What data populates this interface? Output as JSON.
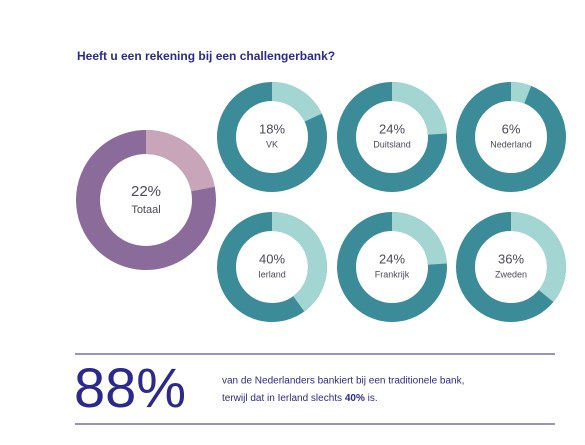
{
  "title": "Heeft u een rekening bij een challengerbank?",
  "chart_data": [
    {
      "type": "donut",
      "label": "Totaal",
      "values": [
        22
      ],
      "value_labels": [
        "22%"
      ],
      "color": "#c9a5ba",
      "track_color": "#8a6b9a",
      "size": "large"
    },
    {
      "type": "donut",
      "label": "VK",
      "values": [
        18
      ],
      "value_labels": [
        "18%"
      ],
      "color": "#a3d5d3",
      "track_color": "#3b8b98",
      "size": "small"
    },
    {
      "type": "donut",
      "label": "Duitsland",
      "values": [
        24
      ],
      "value_labels": [
        "24%"
      ],
      "color": "#a3d5d3",
      "track_color": "#3b8b98",
      "size": "small"
    },
    {
      "type": "donut",
      "label": "Nederland",
      "values": [
        6
      ],
      "value_labels": [
        "6%"
      ],
      "color": "#a3d5d3",
      "track_color": "#3b8b98",
      "size": "small"
    },
    {
      "type": "donut",
      "label": "Ierland",
      "values": [
        40
      ],
      "value_labels": [
        "40%"
      ],
      "color": "#a3d5d3",
      "track_color": "#3b8b98",
      "size": "small"
    },
    {
      "type": "donut",
      "label": "Frankrijk",
      "values": [
        24
      ],
      "value_labels": [
        "24%"
      ],
      "color": "#a3d5d3",
      "track_color": "#3b8b98",
      "size": "small"
    },
    {
      "type": "donut",
      "label": "Zweden",
      "values": [
        36
      ],
      "value_labels": [
        "36%"
      ],
      "color": "#a3d5d3",
      "track_color": "#3b8b98",
      "size": "small"
    }
  ],
  "footer": {
    "stat": "88%",
    "line_1": "van de Nederlanders bankiert bij een traditionele bank,",
    "line_2_start": "terwijl dat in Ierland slechts ",
    "line_2_bold": "40%",
    "line_2_end": " is."
  }
}
